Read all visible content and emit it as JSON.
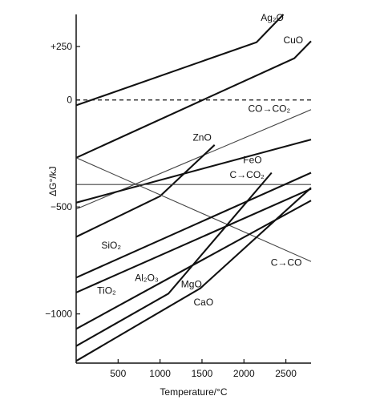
{
  "chart_data": {
    "type": "line",
    "title": "",
    "xlabel": "Temperature/°C",
    "ylabel": "ΔG°/kJ",
    "xlim": [
      0,
      2800
    ],
    "ylim": [
      -1230,
      400
    ],
    "x_ticks": [
      500,
      1000,
      1500,
      2000,
      2500
    ],
    "y_ticks": [
      250,
      0,
      -500,
      -1000
    ],
    "y_tick_labels": [
      "+250",
      "0",
      "−500",
      "−1000"
    ],
    "grid": false,
    "zero_line_dashed": true,
    "series": [
      {
        "name": "Ag₂O",
        "x": [
          0,
          2150,
          2470
        ],
        "y": [
          -25,
          270,
          400
        ],
        "weight": "bold"
      },
      {
        "name": "CuO",
        "x": [
          0,
          2600,
          2800
        ],
        "y": [
          -270,
          195,
          275
        ],
        "weight": "bold"
      },
      {
        "name": "CO→CO₂",
        "x": [
          0,
          2800
        ],
        "y": [
          -510,
          -45
        ],
        "weight": "thin"
      },
      {
        "name": "ZnO",
        "x": [
          0,
          1000,
          1650
        ],
        "y": [
          -640,
          -450,
          -210
        ],
        "weight": "bold"
      },
      {
        "name": "FeO",
        "x": [
          0,
          2800
        ],
        "y": [
          -480,
          -185
        ],
        "weight": "bold"
      },
      {
        "name": "C→CO₂",
        "x": [
          0,
          2800
        ],
        "y": [
          -395,
          -395
        ],
        "weight": "thin"
      },
      {
        "name": "C→CO",
        "x": [
          0,
          2800
        ],
        "y": [
          -270,
          -755
        ],
        "weight": "thin"
      },
      {
        "name": "SiO₂",
        "x": [
          0,
          2800
        ],
        "y": [
          -830,
          -340
        ],
        "weight": "bold"
      },
      {
        "name": "TiO₂",
        "x": [
          0,
          2800
        ],
        "y": [
          -900,
          -415
        ],
        "weight": "bold"
      },
      {
        "name": "Al₂O₃",
        "x": [
          0,
          2800
        ],
        "y": [
          -1070,
          -470
        ],
        "weight": "bold"
      },
      {
        "name": "MgO",
        "x": [
          0,
          1100,
          2330
        ],
        "y": [
          -1150,
          -905,
          -340
        ],
        "weight": "bold"
      },
      {
        "name": "CaO",
        "x": [
          0,
          1480,
          2800
        ],
        "y": [
          -1220,
          -880,
          -410
        ],
        "weight": "bold"
      }
    ],
    "annotations": [
      {
        "text": "Ag₂O",
        "x": 2200,
        "y": 370
      },
      {
        "text": "CuO",
        "x": 2470,
        "y": 265
      },
      {
        "text": "CO→CO₂",
        "x": 2050,
        "y": -55
      },
      {
        "text": "ZnO",
        "x": 1390,
        "y": -190
      },
      {
        "text": "FeO",
        "x": 1990,
        "y": -295
      },
      {
        "text": "C→CO₂",
        "x": 1830,
        "y": -365
      },
      {
        "text": "SiO₂",
        "x": 300,
        "y": -695
      },
      {
        "text": "C→CO",
        "x": 2320,
        "y": -775
      },
      {
        "text": "Al₂O₃",
        "x": 700,
        "y": -845
      },
      {
        "text": "MgO",
        "x": 1250,
        "y": -875
      },
      {
        "text": "TiO₂",
        "x": 250,
        "y": -905
      },
      {
        "text": "CaO",
        "x": 1400,
        "y": -960
      }
    ]
  }
}
